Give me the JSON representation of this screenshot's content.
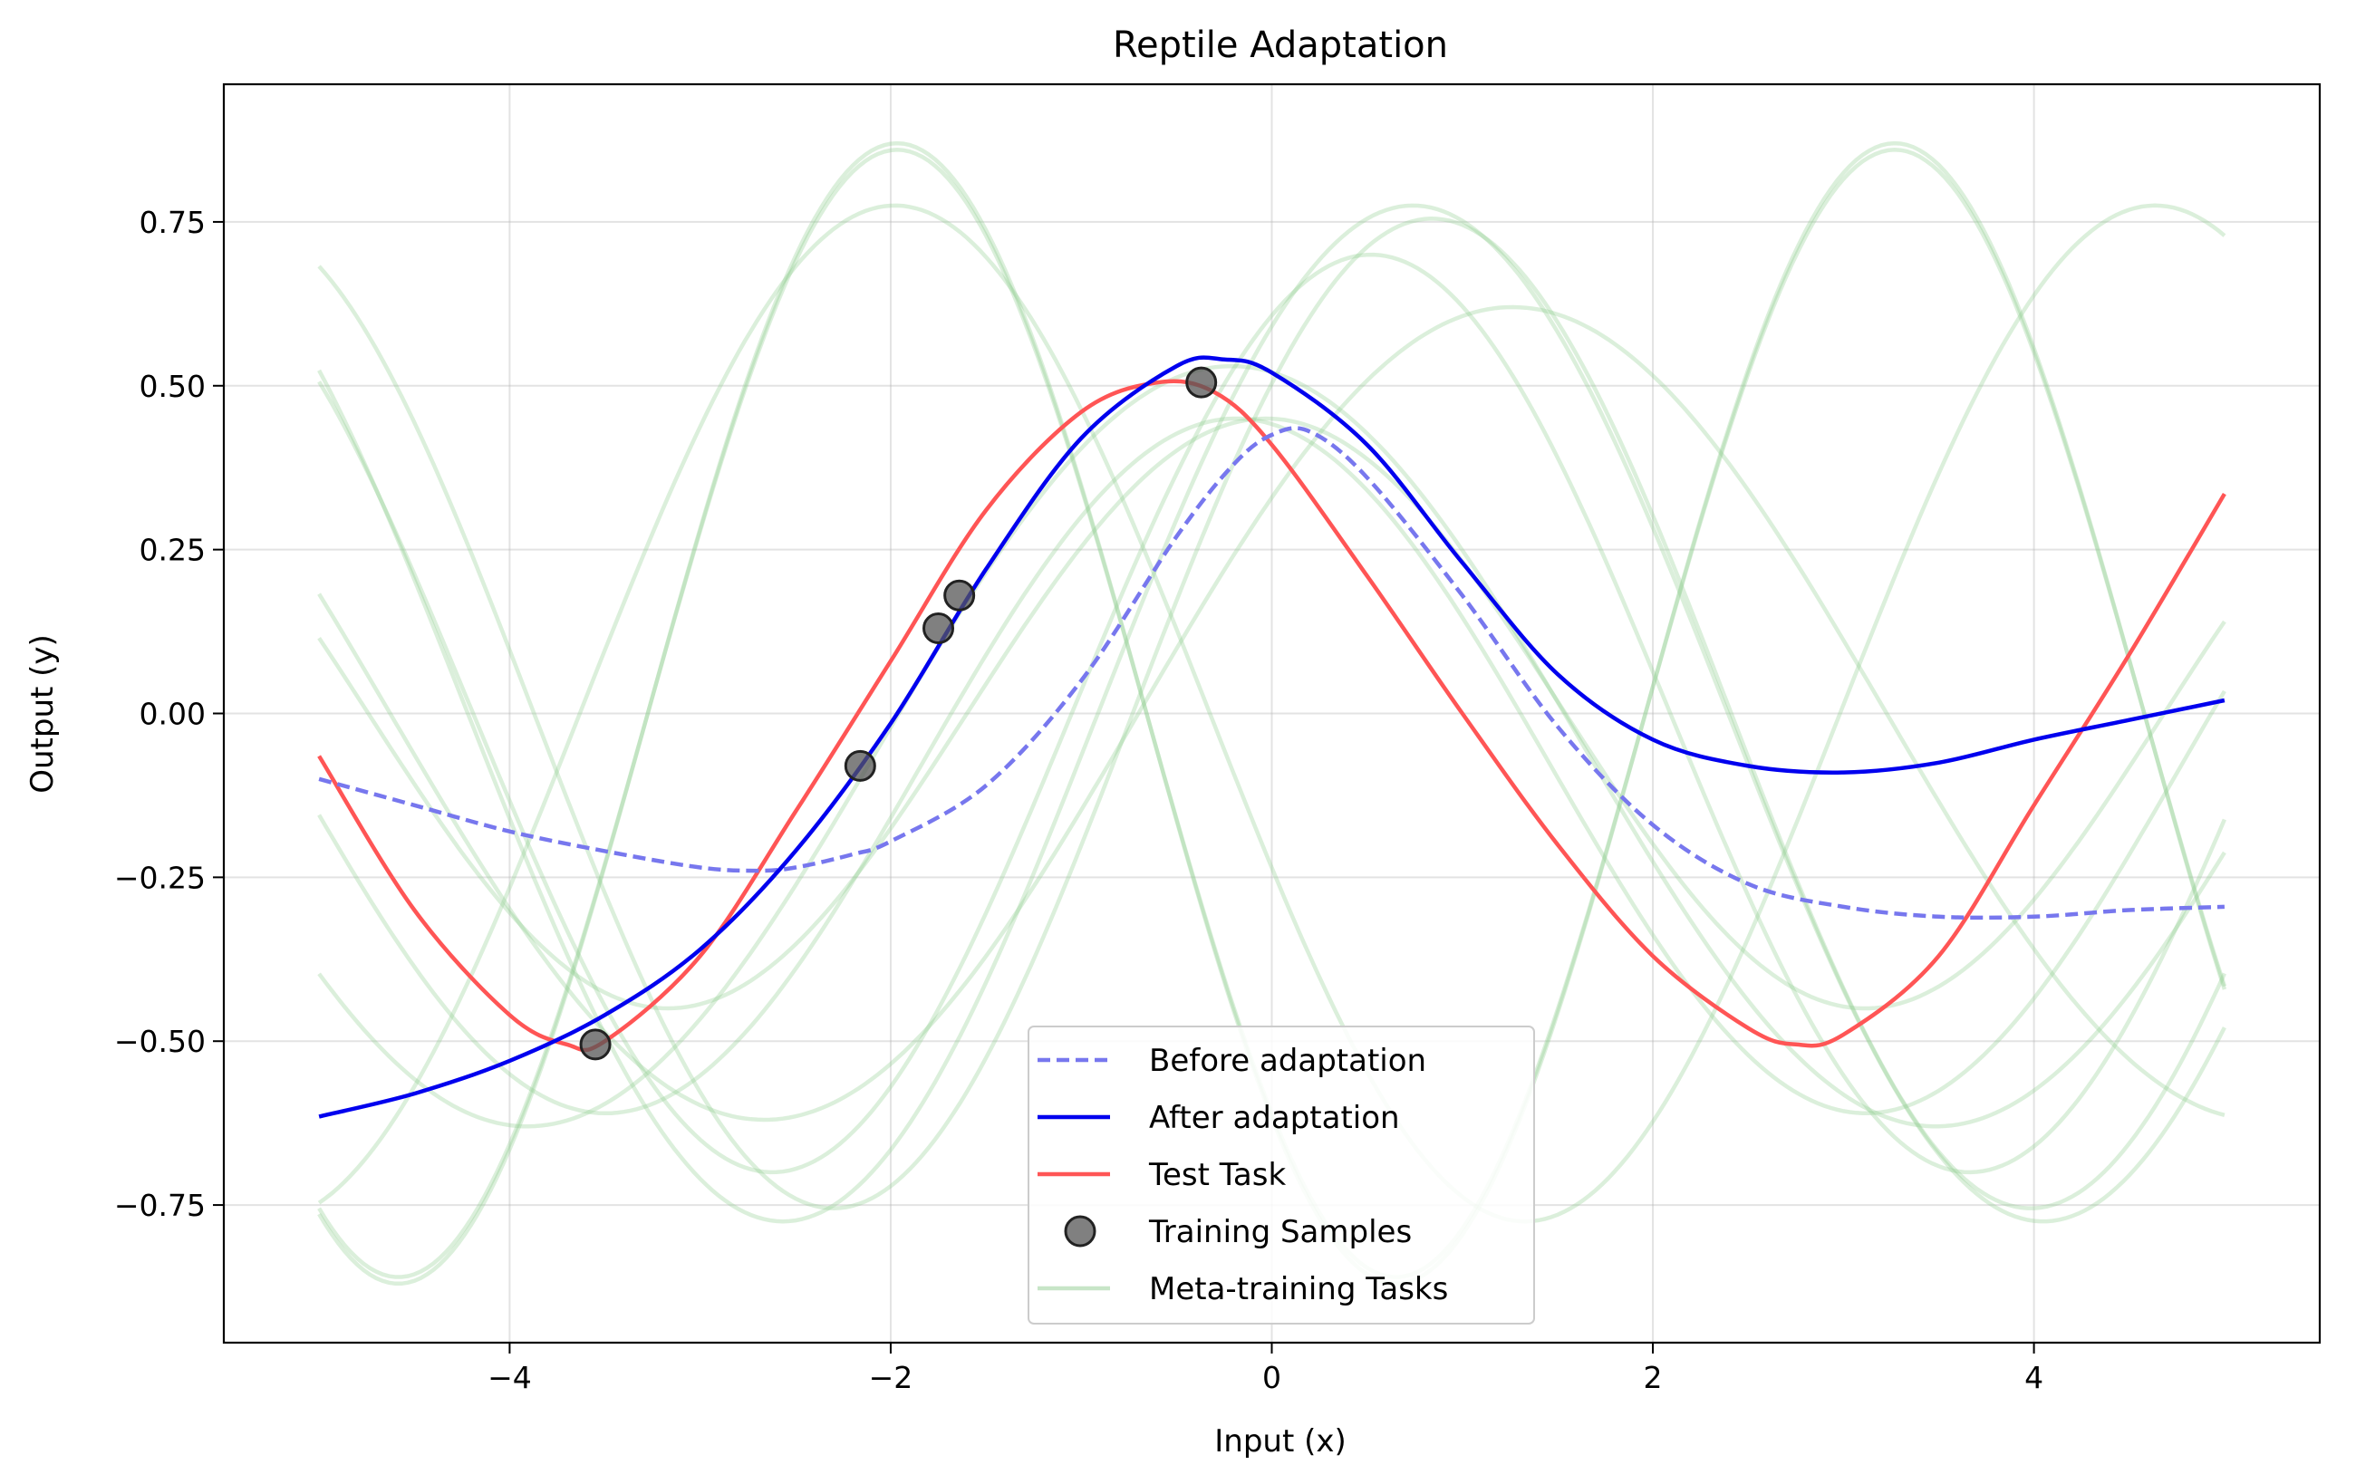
{
  "chart_data": {
    "type": "line",
    "title": "Reptile Adaptation",
    "xlabel": "Input (x)",
    "ylabel": "Output (y)",
    "xlim": [
      -5.5,
      5.5
    ],
    "ylim": [
      -0.96,
      0.96
    ],
    "xticks": [
      -4,
      -2,
      0,
      2,
      4
    ],
    "xtick_labels": [
      "−4",
      "−2",
      "0",
      "2",
      "4"
    ],
    "yticks": [
      -0.75,
      -0.5,
      -0.25,
      0.0,
      0.25,
      0.5,
      0.75
    ],
    "ytick_labels": [
      "−0.75",
      "−0.50",
      "−0.25",
      "0.00",
      "0.25",
      "0.50",
      "0.75"
    ],
    "grid": true,
    "legend_position": "bottom-center",
    "series": [
      {
        "name": "Before adaptation",
        "color": "#7777ee",
        "style": "dashed",
        "x": [
          -5.0,
          -4.5,
          -4.0,
          -3.5,
          -3.0,
          -2.7,
          -2.5,
          -2.2,
          -2.0,
          -1.5,
          -1.0,
          -0.5,
          -0.2,
          0.0,
          0.2,
          0.5,
          1.0,
          1.5,
          2.0,
          2.5,
          3.0,
          3.5,
          4.0,
          4.5,
          5.0
        ],
        "y": [
          -0.1,
          -0.14,
          -0.18,
          -0.21,
          -0.235,
          -0.24,
          -0.235,
          -0.215,
          -0.195,
          -0.11,
          0.05,
          0.27,
          0.38,
          0.425,
          0.43,
          0.36,
          0.18,
          -0.02,
          -0.17,
          -0.26,
          -0.295,
          -0.31,
          -0.31,
          -0.3,
          -0.295
        ]
      },
      {
        "name": "After adaptation",
        "color": "#0000ee",
        "style": "solid",
        "x": [
          -5.0,
          -4.5,
          -4.0,
          -3.5,
          -3.0,
          -2.5,
          -2.0,
          -1.5,
          -1.0,
          -0.5,
          -0.25,
          0.0,
          0.5,
          1.0,
          1.5,
          2.0,
          2.5,
          3.0,
          3.5,
          4.0,
          4.5,
          5.0
        ],
        "y": [
          -0.615,
          -0.58,
          -0.53,
          -0.46,
          -0.36,
          -0.21,
          -0.015,
          0.22,
          0.42,
          0.53,
          0.54,
          0.52,
          0.41,
          0.23,
          0.06,
          -0.04,
          -0.08,
          -0.09,
          -0.075,
          -0.04,
          -0.01,
          0.02
        ]
      },
      {
        "name": "Test Task",
        "color": "#ff5555",
        "style": "solid",
        "x": [
          -5.0,
          -4.5,
          -4.0,
          -3.7,
          -3.5,
          -3.0,
          -2.5,
          -2.0,
          -1.5,
          -1.0,
          -0.6,
          -0.3,
          0.0,
          0.5,
          1.0,
          1.5,
          2.0,
          2.5,
          2.75,
          3.0,
          3.5,
          4.0,
          4.5,
          5.0
        ],
        "y": [
          -0.065,
          -0.3,
          -0.46,
          -0.505,
          -0.5,
          -0.37,
          -0.15,
          0.08,
          0.31,
          0.46,
          0.505,
          0.49,
          0.41,
          0.21,
          0.0,
          -0.2,
          -0.37,
          -0.48,
          -0.505,
          -0.49,
          -0.37,
          -0.14,
          0.09,
          0.335
        ]
      },
      {
        "name": "Training Samples",
        "color": "#555555",
        "style": "markers",
        "x": [
          -3.55,
          -2.16,
          -1.75,
          -1.64,
          -0.37
        ],
        "y": [
          -0.505,
          -0.08,
          0.13,
          0.18,
          0.505
        ]
      },
      {
        "name": "Meta-training Tasks",
        "color": "#90cc90",
        "style": "faint",
        "lines": [
          {
            "amp": 0.87,
            "freq": 1.2,
            "phase": 3.93,
            "off": 0.0
          },
          {
            "amp": 0.86,
            "freq": 1.2,
            "phase": 3.93,
            "off": 0.0
          },
          {
            "amp": 0.775,
            "freq": 0.95,
            "phase": 7.15,
            "off": 0.0
          },
          {
            "amp": 0.775,
            "freq": 0.95,
            "phase": 3.45,
            "off": 0.0
          },
          {
            "amp": 0.7,
            "freq": 1.0,
            "phase": 1.05,
            "off": 0.0
          },
          {
            "amp": 0.755,
            "freq": 1.0,
            "phase": 0.73,
            "off": 0.0
          },
          {
            "amp": 0.62,
            "freq": 0.8,
            "phase": 0.56,
            "off": 0.0
          },
          {
            "amp": 0.45,
            "freq": 1.0,
            "phase": 1.6,
            "off": 0.0
          },
          {
            "amp": 0.53,
            "freq": 0.95,
            "phase": 1.75,
            "off": -0.08
          },
          {
            "amp": 0.58,
            "freq": 0.85,
            "phase": 1.75,
            "off": -0.05
          }
        ]
      }
    ]
  }
}
